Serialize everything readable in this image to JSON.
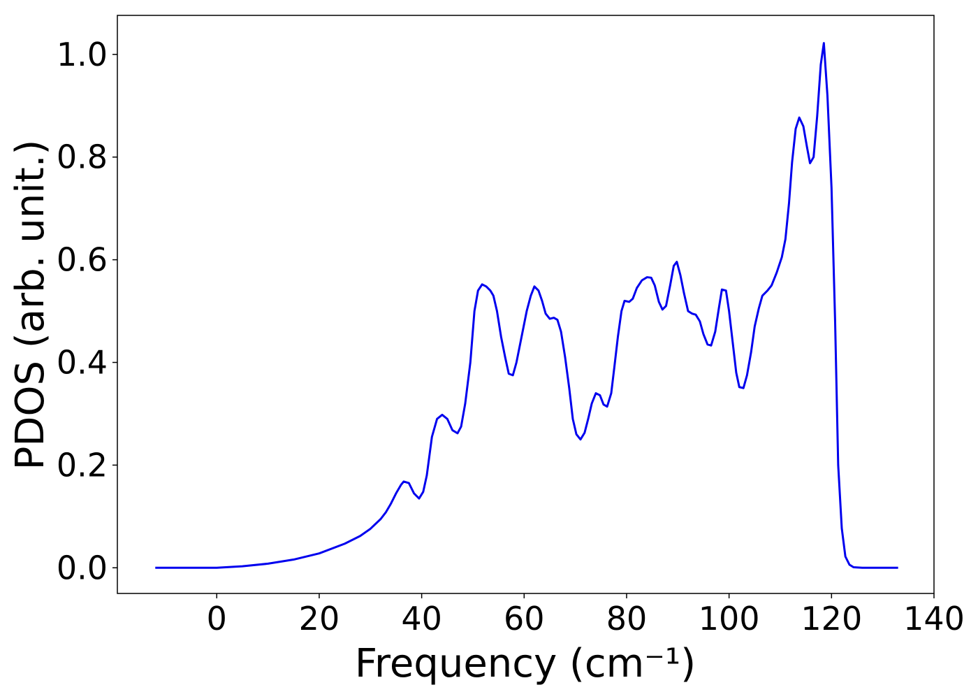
{
  "chart_data": {
    "type": "line",
    "xlabel": "Frequency (cm⁻¹)",
    "ylabel": "PDOS (arb. unit.)",
    "xlim": [
      -19.4,
      140
    ],
    "ylim": [
      -0.05,
      1.076
    ],
    "xticks": [
      0,
      20,
      40,
      60,
      80,
      100,
      120,
      140
    ],
    "yticks": [
      {
        "value": 0,
        "label": "0.0"
      },
      {
        "value": 0.2,
        "label": "0.2"
      },
      {
        "value": 0.4,
        "label": "0.4"
      },
      {
        "value": 0.6,
        "label": "0.6"
      },
      {
        "value": 0.8,
        "label": "0.8"
      },
      {
        "value": 1.0,
        "label": "1.0"
      }
    ],
    "color": "#0000ee",
    "x": [
      -12,
      0,
      5,
      10,
      15,
      20,
      25,
      28,
      30,
      32,
      33,
      34,
      35,
      36,
      36.5,
      37.5,
      38.5,
      39.5,
      40.3,
      41,
      42,
      43,
      44,
      45,
      46,
      47,
      47.7,
      48.5,
      49.5,
      50.3,
      51,
      51.8,
      52.6,
      53.4,
      54,
      54.7,
      55.5,
      56.3,
      57,
      57.8,
      58.5,
      59.5,
      60.5,
      61.3,
      62,
      62.8,
      63.5,
      64.2,
      65,
      65.8,
      66.5,
      67.2,
      68,
      68.8,
      69.5,
      70.2,
      71,
      71.8,
      72.5,
      73.2,
      74,
      74.8,
      75.5,
      76.2,
      77,
      77.6,
      78.3,
      79,
      79.6,
      80.5,
      81.2,
      82,
      83,
      84,
      84.8,
      85.5,
      86.3,
      87,
      87.7,
      88.5,
      89.2,
      89.8,
      90.5,
      91.2,
      92,
      92.8,
      93.5,
      94.3,
      95,
      95.8,
      96.5,
      97.3,
      98,
      98.6,
      99.4,
      100,
      100.7,
      101.4,
      102,
      102.8,
      103.5,
      104.3,
      105,
      105.8,
      106.5,
      107.5,
      108.3,
      109.3,
      110.3,
      111,
      111.7,
      112.3,
      113,
      113.7,
      114.5,
      115.2,
      115.8,
      116.5,
      117.2,
      117.9,
      118.5,
      119.2,
      120,
      120.7,
      121.3,
      122,
      122.7,
      123.5,
      124.3,
      126,
      133
    ],
    "values": [
      0,
      0,
      0.003,
      0.008,
      0.016,
      0.028,
      0.047,
      0.062,
      0.076,
      0.095,
      0.108,
      0.125,
      0.145,
      0.162,
      0.168,
      0.165,
      0.145,
      0.135,
      0.148,
      0.18,
      0.255,
      0.29,
      0.298,
      0.29,
      0.268,
      0.262,
      0.275,
      0.32,
      0.4,
      0.5,
      0.54,
      0.552,
      0.548,
      0.54,
      0.53,
      0.5,
      0.45,
      0.41,
      0.378,
      0.375,
      0.4,
      0.45,
      0.5,
      0.53,
      0.548,
      0.54,
      0.52,
      0.495,
      0.485,
      0.487,
      0.483,
      0.46,
      0.41,
      0.35,
      0.29,
      0.26,
      0.25,
      0.263,
      0.29,
      0.32,
      0.34,
      0.336,
      0.318,
      0.314,
      0.34,
      0.39,
      0.45,
      0.5,
      0.52,
      0.518,
      0.524,
      0.545,
      0.56,
      0.566,
      0.565,
      0.55,
      0.518,
      0.503,
      0.51,
      0.55,
      0.588,
      0.596,
      0.57,
      0.535,
      0.5,
      0.495,
      0.493,
      0.48,
      0.455,
      0.435,
      0.433,
      0.46,
      0.505,
      0.542,
      0.54,
      0.5,
      0.44,
      0.38,
      0.352,
      0.35,
      0.375,
      0.42,
      0.47,
      0.505,
      0.53,
      0.54,
      0.55,
      0.575,
      0.605,
      0.64,
      0.71,
      0.79,
      0.855,
      0.877,
      0.86,
      0.82,
      0.788,
      0.8,
      0.88,
      0.98,
      1.022,
      0.92,
      0.74,
      0.48,
      0.2,
      0.077,
      0.022,
      0.006,
      0.001,
      0,
      0
    ]
  }
}
